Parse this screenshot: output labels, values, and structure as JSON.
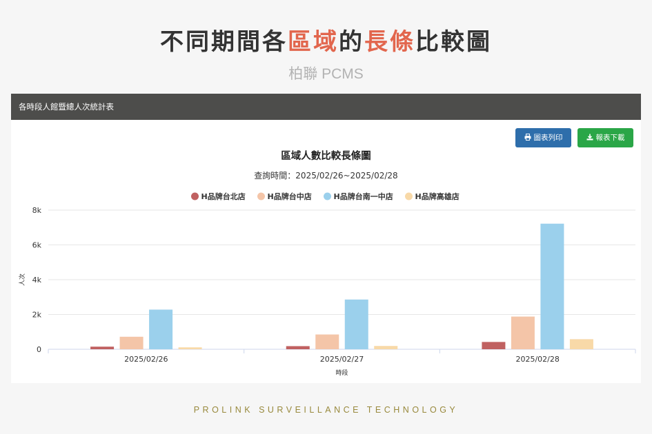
{
  "hero": {
    "title_part1": "不同期間各",
    "title_accent1": "區域",
    "title_part2": "的",
    "title_accent2": "長條",
    "title_part3": "比較圖",
    "subtitle": "柏聯 PCMS"
  },
  "panel": {
    "header": "各時段人館暨總人次統計表",
    "print_button": "圖表列印",
    "download_button": "報表下載",
    "print_icon": "printer-icon",
    "download_icon": "download-icon"
  },
  "footer": {
    "text": "PROLINK SURVEILLANCE TECHNOLOGY"
  },
  "colors": {
    "accent": "#e2664d",
    "print_button": "#2e6eab",
    "download_button": "#2aa647"
  },
  "chart_data": {
    "type": "bar",
    "title": "區域人數比較長條圖",
    "subtitle": "查詢時間：2025/02/26~2025/02/28",
    "xlabel": "時段",
    "ylabel": "人次",
    "categories": [
      "2025/02/26",
      "2025/02/27",
      "2025/02/28"
    ],
    "ylim": [
      0,
      8000
    ],
    "yticks": [
      0,
      2000,
      4000,
      6000,
      8000
    ],
    "ytick_labels": [
      "0",
      "2k",
      "4k",
      "6k",
      "8k"
    ],
    "grid": true,
    "legend_position": "top-center",
    "series": [
      {
        "name": "H品牌台北店",
        "color": "#c06161",
        "values": [
          150,
          180,
          420
        ]
      },
      {
        "name": "H品牌台中店",
        "color": "#f4c5a8",
        "values": [
          720,
          850,
          1880
        ]
      },
      {
        "name": "H品牌台南一中店",
        "color": "#9bd0ec",
        "values": [
          2280,
          2860,
          7220
        ]
      },
      {
        "name": "H品牌高雄店",
        "color": "#f8d9a8",
        "values": [
          110,
          190,
          580
        ]
      }
    ]
  }
}
